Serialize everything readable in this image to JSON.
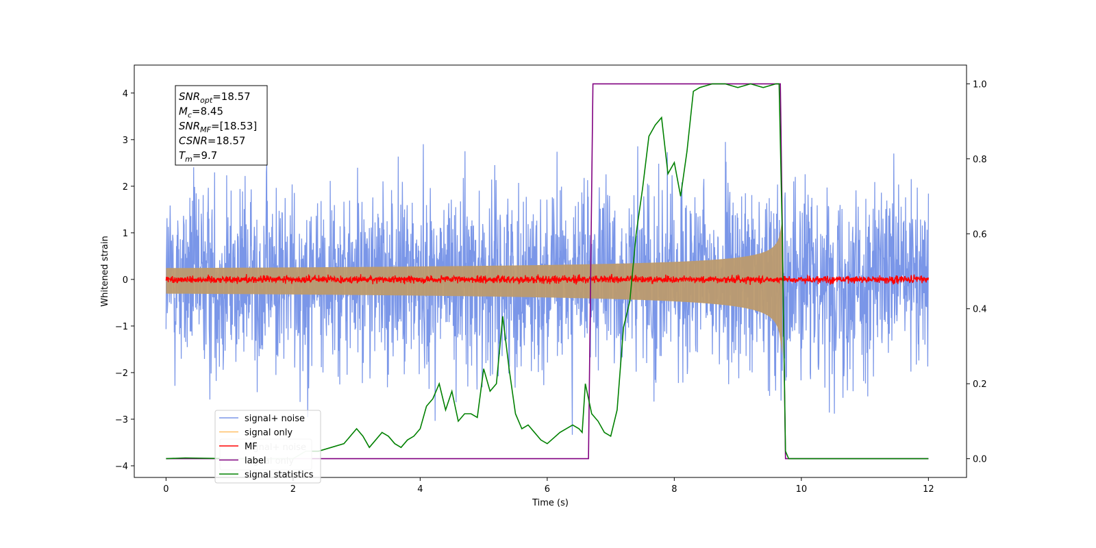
{
  "chart_data": {
    "type": "line",
    "title": "",
    "xlabel": "Time (s)",
    "ylabel": "Whitened strain",
    "xlim": [
      -0.5,
      12.6
    ],
    "ylim": [
      -4.25,
      4.6
    ],
    "y2lim": [
      -0.05,
      1.05
    ],
    "xticks": [
      0,
      2,
      4,
      6,
      8,
      10,
      12
    ],
    "yticks": [
      -4,
      -3,
      -2,
      -1,
      0,
      1,
      2,
      3,
      4
    ],
    "y2ticks": [
      0.0,
      0.2,
      0.4,
      0.6,
      0.8,
      1.0
    ],
    "ytick_labels": [
      "−4",
      "−3",
      "−2",
      "−1",
      "0",
      "1",
      "2",
      "3",
      "4"
    ],
    "y2tick_labels": [
      "0.0",
      "0.2",
      "0.4",
      "0.6",
      "0.8",
      "1.0"
    ],
    "grid": false,
    "legend_position": "lower-left",
    "legend": [
      {
        "name": "signal+ noise",
        "color": "#7a96e8"
      },
      {
        "name": "signal only",
        "color": "#ffbf66"
      },
      {
        "name": "MF",
        "color": "#ff0000"
      },
      {
        "name": "label",
        "color": "#800080"
      },
      {
        "name": "signal statistics",
        "color": "#008000"
      }
    ],
    "ghost_legend": [
      "signal+ noise",
      "signal only"
    ],
    "annotations": [
      {
        "base": "SNR",
        "sub": "opt",
        "rest": "=18.57"
      },
      {
        "base": "M",
        "sub": "c",
        "rest": "=8.45"
      },
      {
        "base": "SNR",
        "sub": "MF",
        "rest": "=[18.53]"
      },
      {
        "base": "CSNR",
        "sub": "",
        "rest": "=18.57"
      },
      {
        "base": "T",
        "sub": "m",
        "rest": "=9.7"
      }
    ],
    "series": [
      {
        "name": "signal+ noise",
        "color": "#7a96e8",
        "axis": "left",
        "kind": "noise",
        "x_range": [
          0,
          12
        ],
        "std": 1.0,
        "mean": 0
      },
      {
        "name": "signal only",
        "color": "#bc9a6e",
        "axis": "left",
        "kind": "chirp",
        "x_range": [
          0,
          9.7
        ],
        "amp_start": 0.03,
        "amp_end": 1.3
      },
      {
        "name": "MF",
        "color": "#ff0000",
        "axis": "left",
        "kind": "noise",
        "x_range": [
          0,
          12
        ],
        "std": 0.04,
        "mean": 0
      },
      {
        "name": "label",
        "color": "#800080",
        "axis": "right",
        "x": [
          0,
          6.65,
          6.72,
          9.67,
          9.75,
          12
        ],
        "y": [
          0,
          0,
          1,
          1,
          0,
          0
        ]
      },
      {
        "name": "signal statistics",
        "color": "#008000",
        "axis": "right",
        "x": [
          0,
          0.3,
          1.0,
          1.5,
          2.0,
          2.2,
          2.4,
          2.6,
          2.8,
          3.0,
          3.1,
          3.2,
          3.3,
          3.4,
          3.5,
          3.6,
          3.7,
          3.8,
          3.9,
          4.0,
          4.1,
          4.2,
          4.3,
          4.4,
          4.5,
          4.6,
          4.7,
          4.8,
          4.9,
          5.0,
          5.1,
          5.2,
          5.3,
          5.4,
          5.5,
          5.6,
          5.7,
          5.8,
          5.9,
          6.0,
          6.2,
          6.4,
          6.5,
          6.55,
          6.6,
          6.7,
          6.8,
          6.9,
          7.0,
          7.1,
          7.2,
          7.3,
          7.4,
          7.5,
          7.6,
          7.7,
          7.8,
          7.9,
          8.0,
          8.1,
          8.2,
          8.3,
          8.4,
          8.6,
          8.8,
          9.0,
          9.2,
          9.4,
          9.6,
          9.65,
          9.7,
          9.75,
          9.8,
          10.0,
          12.0
        ],
        "y": [
          0.0,
          0.002,
          0.0,
          0.0,
          0.0,
          0.02,
          0.02,
          0.03,
          0.04,
          0.08,
          0.06,
          0.03,
          0.05,
          0.07,
          0.06,
          0.04,
          0.03,
          0.05,
          0.06,
          0.08,
          0.14,
          0.16,
          0.2,
          0.13,
          0.18,
          0.1,
          0.12,
          0.12,
          0.11,
          0.24,
          0.18,
          0.2,
          0.38,
          0.24,
          0.12,
          0.08,
          0.09,
          0.07,
          0.05,
          0.04,
          0.07,
          0.09,
          0.08,
          0.07,
          0.2,
          0.12,
          0.1,
          0.07,
          0.06,
          0.13,
          0.35,
          0.42,
          0.6,
          0.72,
          0.86,
          0.89,
          0.91,
          0.76,
          0.79,
          0.7,
          0.82,
          0.98,
          0.99,
          1.0,
          1.0,
          0.99,
          1.0,
          0.99,
          1.0,
          1.0,
          0.6,
          0.02,
          0.0,
          0.0,
          0.0
        ]
      }
    ]
  }
}
